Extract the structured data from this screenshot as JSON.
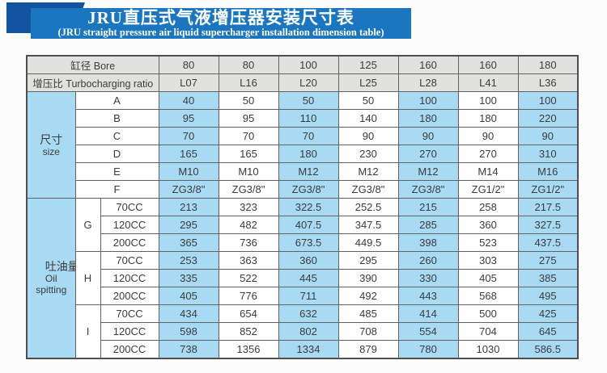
{
  "banner": {
    "title": "JRU直压式气液增压器安装尺寸表",
    "subtitle": "(JRU straight pressure air liquid supercharger installation dimension table)",
    "banner_color": "#1b76c2",
    "accent_square_color": "#12539f"
  },
  "table": {
    "colors": {
      "header_bg": "#e1e1df",
      "blue_cell": "#a9daf3",
      "white_cell": "#ffffff",
      "border": "#616161"
    },
    "header": {
      "bore_label": "缸径 Bore",
      "ratio_label": "增压比 Turbocharging ratio",
      "bores": [
        "80",
        "80",
        "100",
        "125",
        "160",
        "160",
        "180"
      ],
      "ratios": [
        "L07",
        "L16",
        "L20",
        "L25",
        "L28",
        "L41",
        "L36"
      ]
    },
    "size_section": {
      "label_cn": "尺寸",
      "label_en": "size",
      "rows": [
        {
          "param": "A",
          "values": [
            "40",
            "50",
            "50",
            "50",
            "100",
            "100",
            "100"
          ]
        },
        {
          "param": "B",
          "values": [
            "95",
            "95",
            "110",
            "140",
            "180",
            "180",
            "220"
          ]
        },
        {
          "param": "C",
          "values": [
            "70",
            "70",
            "70",
            "90",
            "90",
            "90",
            "90"
          ]
        },
        {
          "param": "D",
          "values": [
            "165",
            "165",
            "180",
            "230",
            "270",
            "270",
            "310"
          ]
        },
        {
          "param": "E",
          "values": [
            "M10",
            "M10",
            "M12",
            "M12",
            "M12",
            "M14",
            "M16"
          ]
        },
        {
          "param": "F",
          "values": [
            "ZG3/8\"",
            "ZG3/8\"",
            "ZG3/8\"",
            "ZG3/8\"",
            "ZG3/8\"",
            "ZG1/2\"",
            "ZG1/2\""
          ]
        }
      ]
    },
    "oil_section": {
      "label_cn": "吐油量",
      "label_en_1": "Oil",
      "label_en_2": "spitting",
      "groups": [
        {
          "param": "G",
          "rows": [
            {
              "cc": "70CC",
              "values": [
                "213",
                "323",
                "322.5",
                "252.5",
                "215",
                "258",
                "217.5"
              ]
            },
            {
              "cc": "120CC",
              "values": [
                "295",
                "482",
                "407.5",
                "347.5",
                "285",
                "360",
                "327.5"
              ]
            },
            {
              "cc": "200CC",
              "values": [
                "365",
                "736",
                "673.5",
                "449.5",
                "398",
                "523",
                "437.5"
              ]
            }
          ]
        },
        {
          "param": "H",
          "rows": [
            {
              "cc": "70CC",
              "values": [
                "253",
                "363",
                "360",
                "295",
                "260",
                "303",
                "275"
              ]
            },
            {
              "cc": "120CC",
              "values": [
                "335",
                "522",
                "445",
                "390",
                "330",
                "405",
                "385"
              ]
            },
            {
              "cc": "200CC",
              "values": [
                "405",
                "776",
                "711",
                "492",
                "443",
                "568",
                "495"
              ]
            }
          ]
        },
        {
          "param": "I",
          "rows": [
            {
              "cc": "70CC",
              "values": [
                "434",
                "654",
                "632",
                "485",
                "414",
                "500",
                "425"
              ]
            },
            {
              "cc": "120CC",
              "values": [
                "598",
                "852",
                "802",
                "708",
                "554",
                "704",
                "645"
              ]
            },
            {
              "cc": "200CC",
              "values": [
                "738",
                "1356",
                "1334",
                "879",
                "780",
                "1030",
                "586.5"
              ]
            }
          ]
        }
      ]
    }
  }
}
